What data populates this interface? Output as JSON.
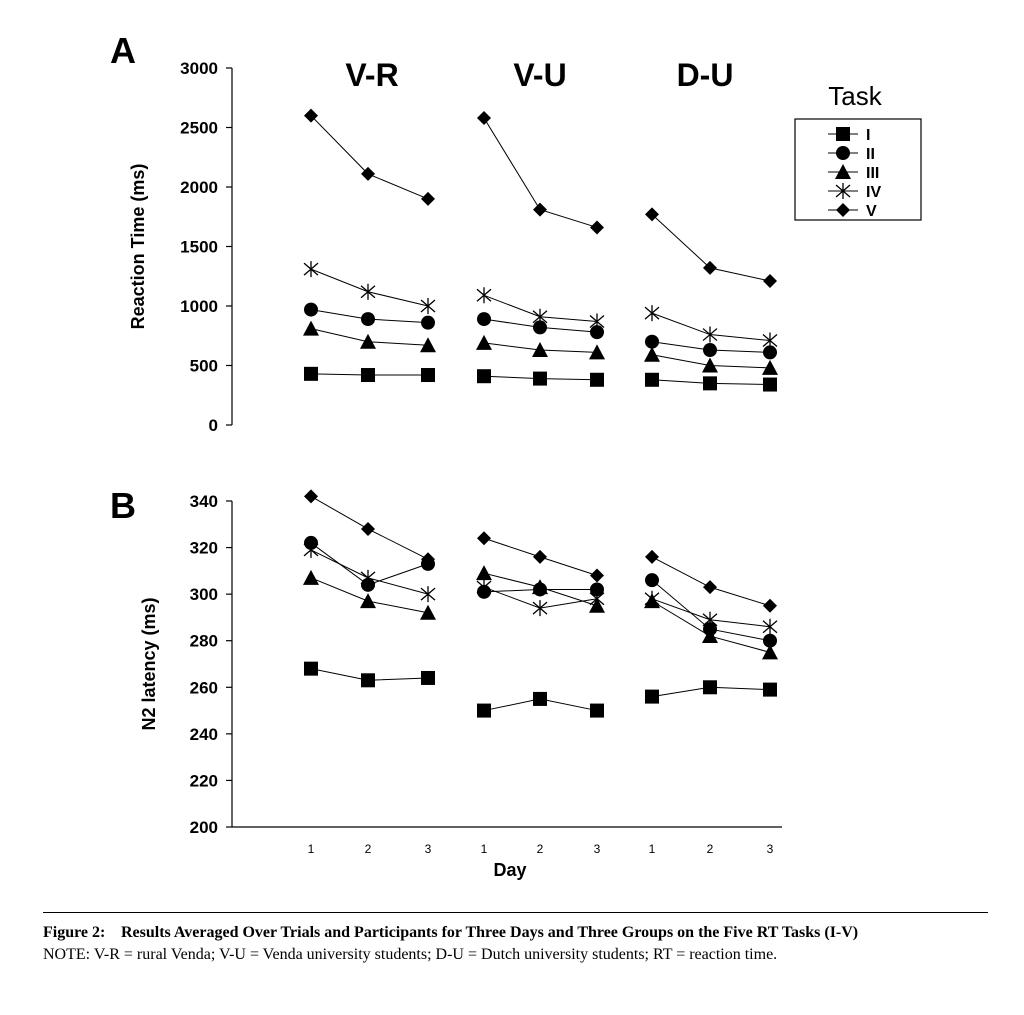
{
  "chart_data": [
    {
      "type": "line",
      "panel_label": "A",
      "ylabel": "Reaction Time (ms)",
      "ylim": [
        0,
        3000
      ],
      "yticks": [
        "0",
        "500",
        "1000",
        "1500",
        "2000",
        "2500",
        "3000"
      ],
      "groups": [
        "V-R",
        "V-U",
        "D-U"
      ],
      "x": [
        1,
        2,
        3
      ],
      "series": [
        {
          "name": "I",
          "marker": "square",
          "values": [
            [
              430,
              420,
              420
            ],
            [
              410,
              390,
              380
            ],
            [
              380,
              350,
              340
            ]
          ]
        },
        {
          "name": "II",
          "marker": "circle",
          "values": [
            [
              970,
              890,
              860
            ],
            [
              890,
              820,
              780
            ],
            [
              700,
              630,
              610
            ]
          ]
        },
        {
          "name": "III",
          "marker": "triangle",
          "values": [
            [
              810,
              700,
              670
            ],
            [
              690,
              630,
              610
            ],
            [
              590,
              500,
              480
            ]
          ]
        },
        {
          "name": "IV",
          "marker": "asterisk",
          "values": [
            [
              1310,
              1120,
              1000
            ],
            [
              1090,
              910,
              870
            ],
            [
              940,
              760,
              710
            ]
          ]
        },
        {
          "name": "V",
          "marker": "diamond",
          "values": [
            [
              2600,
              2110,
              1900
            ],
            [
              2580,
              1810,
              1660
            ],
            [
              1770,
              1320,
              1210
            ]
          ]
        }
      ],
      "legend": {
        "title": "Task",
        "placement": "top-right"
      }
    },
    {
      "type": "line",
      "panel_label": "B",
      "ylabel": "N2 latency (ms)",
      "xlabel": "Day",
      "ylim": [
        200,
        340
      ],
      "yticks": [
        "200",
        "220",
        "240",
        "260",
        "280",
        "300",
        "320",
        "340"
      ],
      "xticks": [
        "1",
        "2",
        "3",
        "1",
        "2",
        "3",
        "1",
        "2",
        "3"
      ],
      "groups": [
        "V-R",
        "V-U",
        "D-U"
      ],
      "x": [
        1,
        2,
        3
      ],
      "series": [
        {
          "name": "I",
          "marker": "square",
          "values": [
            [
              268,
              263,
              264
            ],
            [
              250,
              255,
              250
            ],
            [
              256,
              260,
              259
            ]
          ]
        },
        {
          "name": "II",
          "marker": "circle",
          "values": [
            [
              322,
              304,
              313
            ],
            [
              301,
              302,
              302
            ],
            [
              306,
              285,
              280
            ]
          ]
        },
        {
          "name": "III",
          "marker": "triangle",
          "values": [
            [
              307,
              297,
              292
            ],
            [
              309,
              303,
              295
            ],
            [
              297,
              282,
              275
            ]
          ]
        },
        {
          "name": "IV",
          "marker": "asterisk",
          "values": [
            [
              319,
              307,
              300
            ],
            [
              303,
              294,
              298
            ],
            [
              298,
              289,
              286
            ]
          ]
        },
        {
          "name": "V",
          "marker": "diamond",
          "values": [
            [
              342,
              328,
              315
            ],
            [
              324,
              316,
              308
            ],
            [
              316,
              303,
              295
            ]
          ]
        }
      ]
    }
  ],
  "caption": {
    "number": "Figure 2:",
    "title": "Results Averaged Over Trials and Participants for Three Days and Three Groups on the Five RT Tasks (I-V)",
    "note": "NOTE: V-R = rural Venda; V-U = Venda university students; D-U = Dutch university students; RT = reaction time."
  }
}
